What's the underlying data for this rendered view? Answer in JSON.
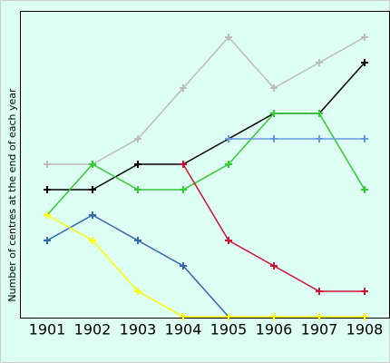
{
  "chart_data": {
    "type": "line",
    "ylabel": "Number of centres at the end of each year",
    "categories": [
      "1901",
      "1902",
      "1903",
      "1904",
      "1905",
      "1906",
      "1907",
      "1908"
    ],
    "ylim": [
      0,
      12
    ],
    "series": [
      {
        "color": "#bbbbbb",
        "values": [
          6,
          6,
          7,
          9,
          11,
          9,
          10,
          11
        ]
      },
      {
        "color": "#000000",
        "values": [
          5,
          5,
          6,
          6,
          7,
          8,
          8,
          10
        ]
      },
      {
        "color": "#33cc33",
        "values": [
          4,
          6,
          5,
          5,
          6,
          8,
          8,
          5
        ]
      },
      {
        "color": "#6699dd",
        "values": [
          null,
          null,
          null,
          null,
          7,
          7,
          7,
          7
        ]
      },
      {
        "color": "#cc1133",
        "values": [
          null,
          null,
          null,
          6,
          3,
          2,
          1,
          1
        ]
      },
      {
        "color": "#3366aa",
        "values": [
          3,
          4,
          3,
          2,
          0,
          null,
          null,
          null
        ]
      },
      {
        "color": "#ffff00",
        "values": [
          4,
          3,
          1,
          0,
          0,
          0,
          0,
          0
        ]
      }
    ]
  }
}
